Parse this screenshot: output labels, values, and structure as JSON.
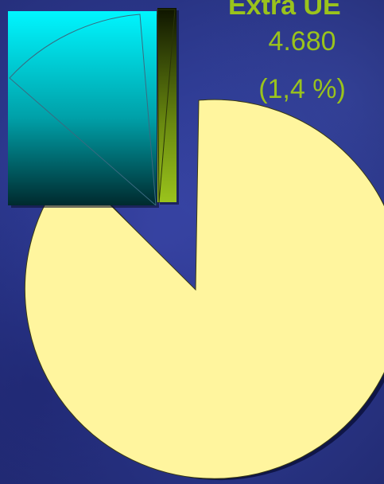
{
  "chart_data": {
    "type": "pie",
    "series": [
      {
        "name": "",
        "share": 0.875,
        "color": "#fff59e"
      },
      {
        "name": "",
        "share": 0.111,
        "color": "#00e6f0"
      },
      {
        "name": "Extra UE",
        "value": "4.680",
        "percent": "(1,4 %)",
        "share": 0.014,
        "color": "#9ac31c"
      }
    ]
  },
  "labels": {
    "slice_name": "Extra UE",
    "slice_value": "4.680",
    "slice_percent": "(1,4 %)"
  }
}
